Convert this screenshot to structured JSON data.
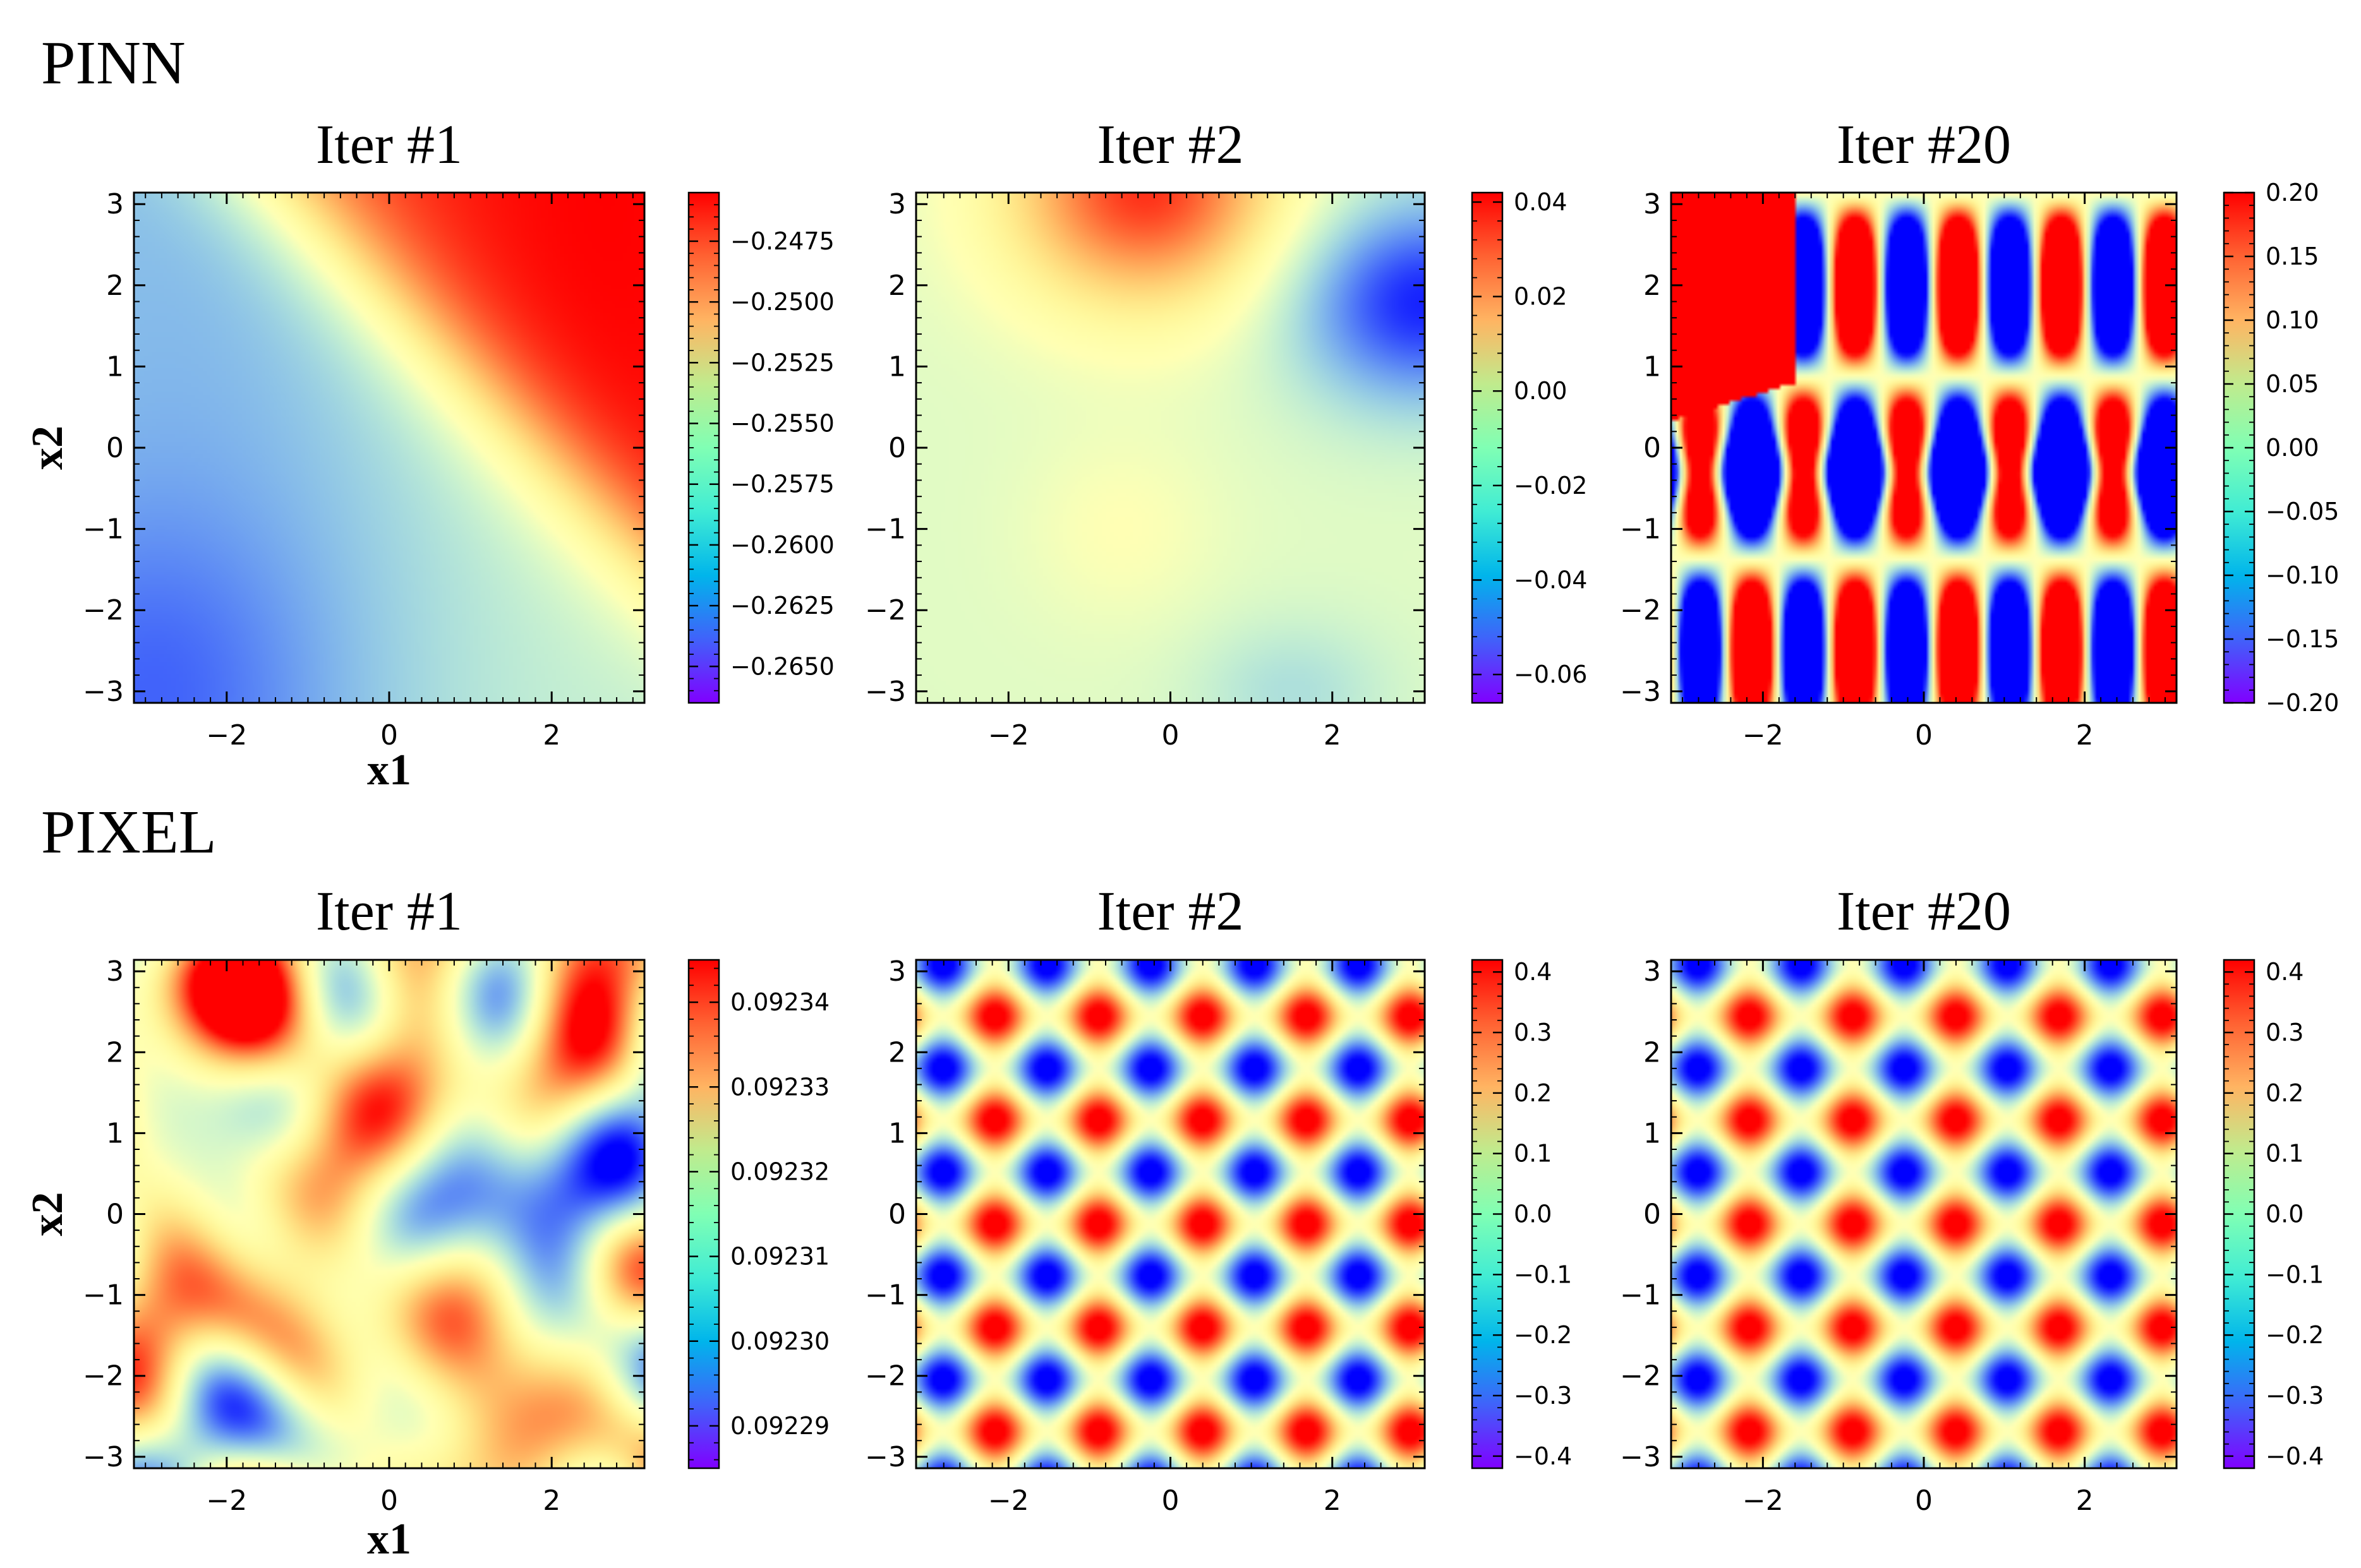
{
  "figure": {
    "rows": [
      {
        "label": "PINN",
        "panels": [
          {
            "title": "Iter #1",
            "pattern": "pinn1",
            "colorbar": {
              "vmin": -0.2665,
              "vmax": -0.2455,
              "ticks": [
                -0.2475,
                -0.25,
                -0.2525,
                -0.255,
                -0.2575,
                -0.26,
                -0.2625,
                -0.265
              ],
              "labels": [
                "−0.2475",
                "−0.2500",
                "−0.2525",
                "−0.2550",
                "−0.2575",
                "−0.2600",
                "−0.2625",
                "−0.2650"
              ]
            }
          },
          {
            "title": "Iter #2",
            "pattern": "pinn2",
            "colorbar": {
              "vmin": -0.066,
              "vmax": 0.042,
              "ticks": [
                0.04,
                0.02,
                0,
                -0.02,
                -0.04,
                -0.06
              ],
              "labels": [
                "0.04",
                "0.02",
                "0.00",
                "−0.02",
                "−0.04",
                "−0.06"
              ]
            }
          },
          {
            "title": "Iter #20",
            "pattern": "pinn20",
            "colorbar": {
              "vmin": -0.2,
              "vmax": 0.2,
              "ticks": [
                0.2,
                0.15,
                0.1,
                0.05,
                0,
                -0.05,
                -0.1,
                -0.15,
                -0.2
              ],
              "labels": [
                "0.20",
                "0.15",
                "0.10",
                "0.05",
                "0.00",
                "−0.05",
                "−0.10",
                "−0.15",
                "−0.20"
              ]
            }
          }
        ]
      },
      {
        "label": "PIXEL",
        "panels": [
          {
            "title": "Iter #1",
            "pattern": "noise",
            "colorbar": {
              "vmin": 0.092285,
              "vmax": 0.092345,
              "ticks": [
                0.09234,
                0.09233,
                0.09232,
                0.09231,
                0.0923,
                0.09229
              ],
              "labels": [
                "0.09234",
                "0.09233",
                "0.09232",
                "0.09231",
                "0.09230",
                "0.09229"
              ]
            }
          },
          {
            "title": "Iter #2",
            "pattern": "wave",
            "colorbar": {
              "vmin": -0.42,
              "vmax": 0.42,
              "ticks": [
                0.4,
                0.3,
                0.2,
                0.1,
                0,
                -0.1,
                -0.2,
                -0.3,
                -0.4
              ],
              "labels": [
                "0.4",
                "0.3",
                "0.2",
                "0.1",
                "0.0",
                "−0.1",
                "−0.2",
                "−0.3",
                "−0.4"
              ]
            }
          },
          {
            "title": "Iter #20",
            "pattern": "wave",
            "colorbar": {
              "vmin": -0.42,
              "vmax": 0.42,
              "ticks": [
                0.4,
                0.3,
                0.2,
                0.1,
                0,
                -0.1,
                -0.2,
                -0.3,
                -0.4
              ],
              "labels": [
                "0.4",
                "0.3",
                "0.2",
                "0.1",
                "0.0",
                "−0.1",
                "−0.2",
                "−0.3",
                "−0.4"
              ]
            }
          }
        ]
      }
    ],
    "xlabel": "x1",
    "ylabel": "x2",
    "colormap": "rainbow"
  },
  "chart_data": {
    "type": "heatmap",
    "x_range": [
      -3.14159,
      3.14159
    ],
    "y_range": [
      -3.14159,
      3.14159
    ],
    "x_ticks": [
      -2,
      0,
      2
    ],
    "x_tick_labels": [
      "−2",
      "0",
      "2"
    ],
    "y_ticks": [
      3,
      2,
      1,
      0,
      -1,
      -2,
      -3
    ],
    "y_tick_labels": [
      "3",
      "2",
      "1",
      "0",
      "−1",
      "−2",
      "−3"
    ],
    "xlabel": "x1",
    "ylabel": "x2",
    "series": [
      {
        "name": "PINN Iter #1",
        "value_range": [
          -0.2665,
          -0.2455
        ]
      },
      {
        "name": "PINN Iter #2",
        "value_range": [
          -0.066,
          0.042
        ]
      },
      {
        "name": "PINN Iter #20",
        "value_range": [
          -0.2,
          0.2
        ]
      },
      {
        "name": "PIXEL Iter #1",
        "value_range": [
          0.092285,
          0.092345
        ]
      },
      {
        "name": "PIXEL Iter #2",
        "value_range": [
          -0.42,
          0.42
        ]
      },
      {
        "name": "PIXEL Iter #20",
        "value_range": [
          -0.42,
          0.42
        ]
      }
    ]
  }
}
